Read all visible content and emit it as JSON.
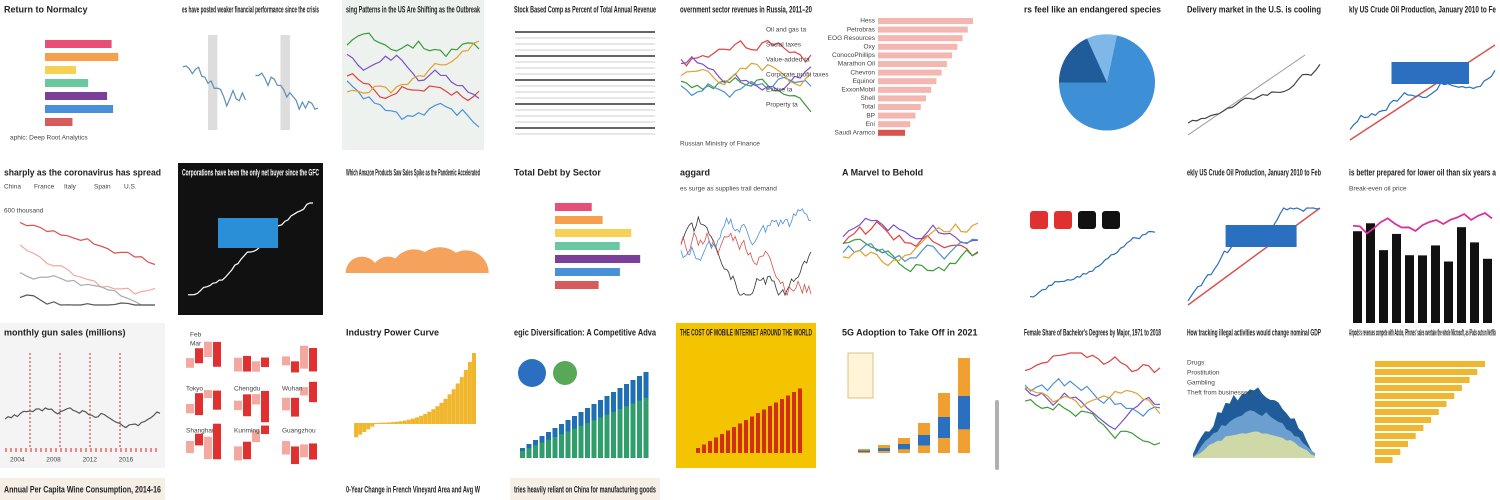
{
  "tiles": [
    {
      "title": "Return to Normalcy",
      "labels": [
        "aphic: Deep Root Analytics"
      ]
    },
    {
      "title": "es have posted weaker financial performance since the crisis",
      "labels": []
    },
    {
      "title": "sing Patterns in the US Are Shifting as the Outbreak",
      "labels": []
    },
    {
      "title": "Stock Based Comp as Percent of Total Annual Revenue",
      "labels": []
    },
    {
      "title": "overnment sector revenues in Russia, 2011–20",
      "labels": [
        "Oil and gas ta",
        "Social taxes",
        "Value-added ta",
        "Corporate profit taxes",
        "Excise ta",
        "Property ta",
        "Russian Ministry of Finance"
      ]
    },
    {
      "labels": [
        "Hess",
        "Petrobras",
        "EOG Resources",
        "Oxy",
        "ConocoPhillips",
        "Marathon Oil",
        "Chevron",
        "Equinor",
        "ExxonMobil",
        "Shell",
        "Total",
        "BP",
        "Eni",
        "Saudi Aramco"
      ]
    },
    {
      "title": "rs feel like an endangered species",
      "labels": []
    },
    {
      "title": "Delivery market in the U.S. is cooling",
      "labels": []
    },
    {
      "title": "kly US Crude Oil Production, January 2010 to Fe",
      "labels": []
    },
    {
      "title": "sharply as the coronavirus has spread",
      "labels": [
        "China",
        "France",
        "Italy",
        "Spain",
        "U.S.",
        "600 thousand"
      ]
    },
    {
      "title": "Corporations have been the only net buyer since the GFC",
      "labels": []
    },
    {
      "title": "Which Amazon Products Saw Sales Spike as the Pandemic Accelerated",
      "labels": []
    },
    {
      "title": "Total Debt by Sector",
      "labels": []
    },
    {
      "title": "aggard",
      "labels": [
        "es surge as supplies trail demand"
      ]
    },
    {
      "title": "A Marvel to Behold",
      "labels": []
    },
    {
      "labels": []
    },
    {
      "title": "ekly US Crude Oil Production, January 2010 to Feb",
      "labels": []
    },
    {
      "title": "is better prepared for lower oil than six years a",
      "labels": [
        "Break-even oil price"
      ]
    },
    {
      "title": "monthly gun sales (millions)",
      "labels": [
        "2004",
        "2008",
        "2012",
        "2016"
      ]
    },
    {
      "labels": [
        "Feb",
        "Mar",
        "Tokyo",
        "Chengdu",
        "Wuhan",
        "Shanghai",
        "Kunming",
        "Guangzhou"
      ]
    },
    {
      "title": "Industry Power Curve",
      "labels": []
    },
    {
      "title": "egic Diversification: A Competitive Adva",
      "labels": []
    },
    {
      "title": "THE COST OF MOBILE INTERNET AROUND THE WORLD",
      "labels": []
    },
    {
      "title": "5G Adoption to Take Off in 2021",
      "labels": []
    },
    {
      "title": "Female Share of Bachelor's Degrees by Major, 1971 to 2018",
      "labels": []
    },
    {
      "title": "How tracking illegal activities would change nominal GDP",
      "labels": [
        "Drugs",
        "Prostitution",
        "Gambling",
        "Theft from businesses"
      ]
    },
    {
      "title": "Airpods's revenues compete with Adobe, iPhones' sales overtake the whole Microsoft, as iPads outrun Netflix",
      "labels": []
    },
    {
      "title": "Annual Per Capita Wine Consumption, 2014-16",
      "labels": []
    },
    {
      "labels": []
    },
    {
      "title": "0-Year Change in French Vineyard Area and Avg W",
      "labels": []
    },
    {
      "title": "tries heavily reliant on China for manufacturing goods",
      "labels": []
    }
  ]
}
